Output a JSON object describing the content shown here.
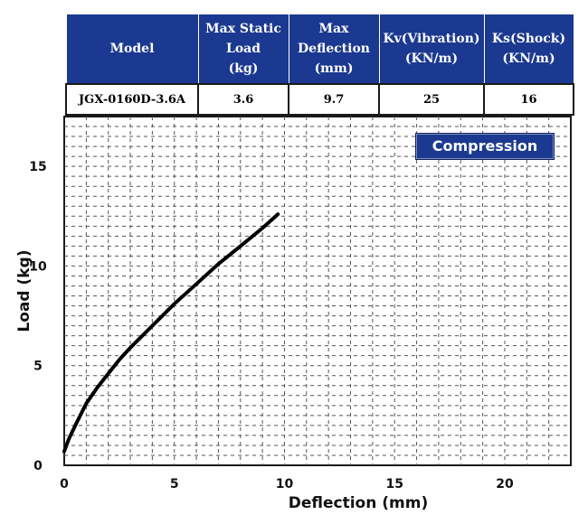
{
  "spec_table": {
    "headers": [
      [
        "Model"
      ],
      [
        "Max Static",
        "Load",
        "(kg)"
      ],
      [
        "Max",
        "Deflection",
        "(mm)"
      ],
      [
        "Kv(Vibration)",
        "(KN/m)"
      ],
      [
        "Ks(Shock)",
        "(KN/m)"
      ]
    ],
    "row": [
      "JGX-0160D-3.6A",
      "3.6",
      "9.7",
      "25",
      "16"
    ]
  },
  "colors": {
    "header_bg": "#1b3990",
    "curve": "#000000",
    "grid": "#555555"
  },
  "chart_data": {
    "type": "line",
    "title": "",
    "legend": "Compression",
    "legend_placement": "top-right",
    "xlabel": "Deflection (mm)",
    "ylabel": "Load (kg)",
    "xlim": [
      0,
      23
    ],
    "ylim": [
      0,
      17.5
    ],
    "x_ticks": [
      0,
      5,
      10,
      15,
      20
    ],
    "y_ticks": [
      0,
      5,
      10,
      15
    ],
    "grid": "dashed, minor step 1 mm / 0.5 kg",
    "series": [
      {
        "x": [
          0.0,
          0.2,
          0.5,
          1.0,
          1.5,
          2.0,
          2.5,
          3.0,
          4.0,
          5.0,
          6.0,
          7.0,
          8.0,
          9.0,
          9.7
        ],
        "y": [
          0.7,
          1.3,
          2.0,
          3.1,
          3.9,
          4.6,
          5.3,
          5.9,
          7.0,
          8.1,
          9.1,
          10.1,
          11.0,
          11.9,
          12.6
        ]
      }
    ]
  }
}
